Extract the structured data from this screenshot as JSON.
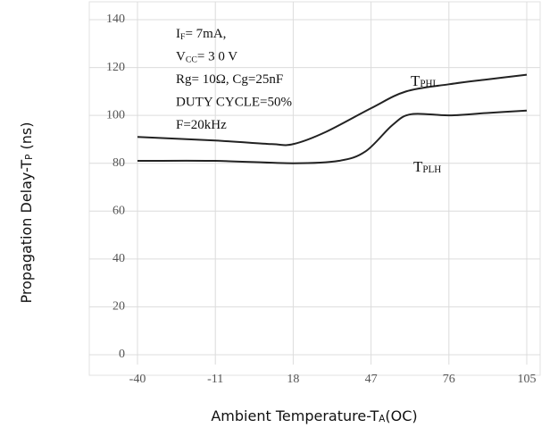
{
  "chart_data": {
    "type": "line",
    "x_label": [
      {
        "t": "Ambient Temperature-T"
      },
      {
        "t": "A",
        "sub": true
      },
      {
        "t": "(OC)"
      }
    ],
    "y_label": [
      {
        "t": "Propagation Delay-T"
      },
      {
        "t": "P",
        "sub": true
      },
      {
        "t": " (ns)"
      }
    ],
    "annotations": [
      [
        {
          "t": "I"
        },
        {
          "t": "F",
          "sub": true
        },
        {
          "t": "= 7mA,"
        }
      ],
      [
        {
          "t": "V"
        },
        {
          "t": "CC",
          "sub": true
        },
        {
          "t": "= 3 0 V"
        }
      ],
      [
        {
          "t": "Rg= 10Ω, Cg=25nF"
        }
      ],
      [
        {
          "t": "DUTY CYCLE=50%"
        }
      ],
      [
        {
          "t": "F=20kHz"
        }
      ]
    ],
    "xlim": [
      -40,
      105
    ],
    "xticks": [
      -40,
      -11,
      18,
      47,
      76,
      105
    ],
    "ylim": [
      0,
      140
    ],
    "yticks": [
      0,
      20,
      40,
      60,
      80,
      100,
      120,
      140
    ],
    "grid": true,
    "series": [
      {
        "name": [
          {
            "t": "T"
          },
          {
            "t": "PHL",
            "sub": true
          }
        ],
        "color": "#222222",
        "x": [
          -40,
          -11,
          10,
          18,
          30,
          47,
          60,
          76,
          90,
          105
        ],
        "values": [
          91,
          89.5,
          88,
          88,
          93,
          103,
          110,
          113,
          115,
          117
        ]
      },
      {
        "name": [
          {
            "t": "T"
          },
          {
            "t": "PLH",
            "sub": true
          }
        ],
        "color": "#222222",
        "x": [
          -40,
          -11,
          18,
          35,
          45,
          55,
          62,
          76,
          90,
          105
        ],
        "values": [
          81,
          81,
          80,
          81,
          85,
          96,
          100.5,
          100,
          101,
          102
        ]
      }
    ]
  }
}
